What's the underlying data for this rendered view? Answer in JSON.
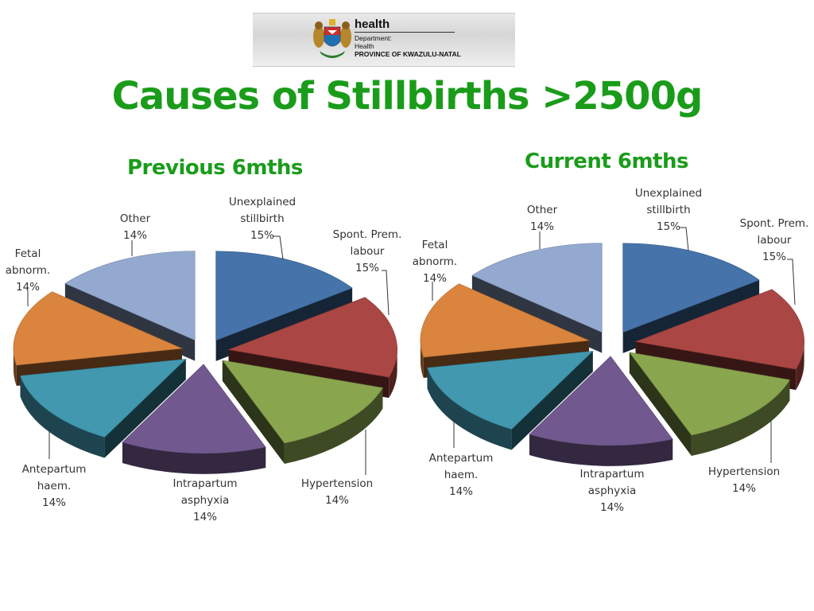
{
  "header": {
    "logo": {
      "word": "health",
      "line1": "Department:",
      "line2": "Health",
      "line3": "PROVINCE OF KWAZULU-NATAL"
    },
    "title": "Causes of Stillbirths >2500g"
  },
  "colors": {
    "title_green": "#1a9c1a",
    "unexplained": "#4573aa",
    "spont": "#aa4643",
    "hypertension": "#89a54e",
    "intrapartum": "#71588f",
    "antepartum": "#4198af",
    "fetal": "#db843d",
    "other": "#93a9cf"
  },
  "chart_data": [
    {
      "type": "pie",
      "title": "Previous 6mths",
      "slices": [
        {
          "label": "Unexplained stillbirth",
          "value": 15,
          "text": "15%"
        },
        {
          "label": "Spont. Prem. labour",
          "value": 15,
          "text": "15%"
        },
        {
          "label": "Hypertension",
          "value": 14,
          "text": "14%"
        },
        {
          "label": "Intrapartum asphyxia",
          "value": 14,
          "text": "14%"
        },
        {
          "label": "Antepartum haem.",
          "value": 14,
          "text": "14%"
        },
        {
          "label": "Fetal abnorm.",
          "value": 14,
          "text": "14%"
        },
        {
          "label": "Other",
          "value": 14,
          "text": "14%"
        }
      ]
    },
    {
      "type": "pie",
      "title": "Current 6mths",
      "slices": [
        {
          "label": "Unexplained stillbirth",
          "value": 15,
          "text": "15%"
        },
        {
          "label": "Spont. Prem. labour",
          "value": 15,
          "text": "15%"
        },
        {
          "label": "Hypertension",
          "value": 14,
          "text": "14%"
        },
        {
          "label": "Intrapartum asphyxia",
          "value": 14,
          "text": "14%"
        },
        {
          "label": "Antepartum haem.",
          "value": 14,
          "text": "14%"
        },
        {
          "label": "Fetal abnorm.",
          "value": 14,
          "text": "14%"
        },
        {
          "label": "Other",
          "value": 14,
          "text": "14%"
        }
      ]
    }
  ],
  "labels": {
    "prev": {
      "unexplained": [
        "Unexplained",
        "stillbirth",
        "15%"
      ],
      "spont": [
        "Spont. Prem.",
        "labour",
        "15%"
      ],
      "hypertension": [
        "Hypertension",
        "14%"
      ],
      "intrapartum": [
        "Intrapartum",
        "asphyxia",
        "14%"
      ],
      "antepartum": [
        "Antepartum",
        "haem.",
        "14%"
      ],
      "fetal": [
        "Fetal",
        "abnorm.",
        "14%"
      ],
      "other": [
        "Other",
        "14%"
      ]
    },
    "cur": {
      "unexplained": [
        "Unexplained",
        "stillbirth",
        "15%"
      ],
      "spont": [
        "Spont. Prem.",
        "labour",
        "15%"
      ],
      "hypertension": [
        "Hypertension",
        "14%"
      ],
      "intrapartum": [
        "Intrapartum",
        "asphyxia",
        "14%"
      ],
      "antepartum": [
        "Antepartum",
        "haem.",
        "14%"
      ],
      "fetal": [
        "Fetal",
        "abnorm.",
        "14%"
      ],
      "other": [
        "Other",
        "14%"
      ]
    }
  }
}
